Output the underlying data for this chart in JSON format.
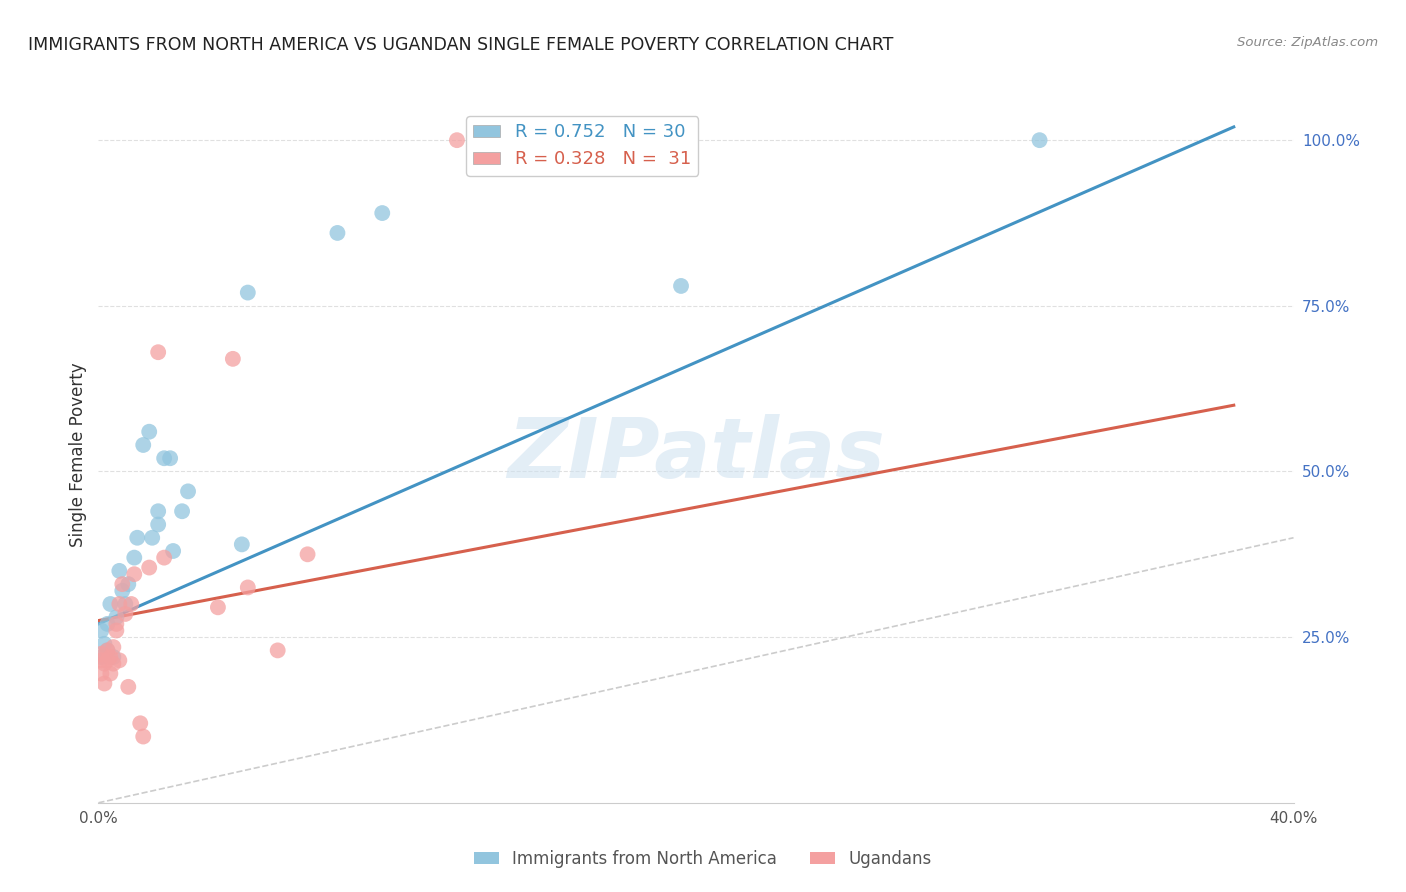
{
  "title": "IMMIGRANTS FROM NORTH AMERICA VS UGANDAN SINGLE FEMALE POVERTY CORRELATION CHART",
  "source": "Source: ZipAtlas.com",
  "ylabel": "Single Female Poverty",
  "xlim": [
    0.0,
    0.4
  ],
  "ylim": [
    0.0,
    1.05
  ],
  "x_ticks": [
    0.0,
    0.08,
    0.16,
    0.24,
    0.32,
    0.4
  ],
  "x_tick_labels": [
    "0.0%",
    "",
    "",
    "",
    "",
    "40.0%"
  ],
  "y_ticks_right": [
    0.25,
    0.5,
    0.75,
    1.0
  ],
  "y_tick_labels_right": [
    "25.0%",
    "50.0%",
    "75.0%",
    "100.0%"
  ],
  "blue_R": 0.752,
  "blue_N": 30,
  "pink_R": 0.328,
  "pink_N": 31,
  "blue_color": "#92c5de",
  "pink_color": "#f4a0a0",
  "blue_line_color": "#4393c3",
  "pink_line_color": "#d6604d",
  "diagonal_color": "#cccccc",
  "background_color": "#ffffff",
  "watermark": "ZIPatlas",
  "blue_line_x0": 0.0,
  "blue_line_y0": 0.27,
  "blue_line_x1": 0.38,
  "blue_line_y1": 1.02,
  "pink_line_x0": 0.0,
  "pink_line_y0": 0.275,
  "pink_line_x1": 0.38,
  "pink_line_y1": 0.6,
  "blue_points_x": [
    0.001,
    0.001,
    0.002,
    0.003,
    0.003,
    0.004,
    0.005,
    0.006,
    0.007,
    0.008,
    0.009,
    0.01,
    0.012,
    0.013,
    0.015,
    0.017,
    0.018,
    0.02,
    0.02,
    0.022,
    0.024,
    0.025,
    0.028,
    0.03,
    0.048,
    0.05,
    0.08,
    0.095,
    0.195,
    0.315
  ],
  "blue_points_y": [
    0.22,
    0.26,
    0.24,
    0.23,
    0.27,
    0.3,
    0.22,
    0.28,
    0.35,
    0.32,
    0.3,
    0.33,
    0.37,
    0.4,
    0.54,
    0.56,
    0.4,
    0.42,
    0.44,
    0.52,
    0.52,
    0.38,
    0.44,
    0.47,
    0.39,
    0.77,
    0.86,
    0.89,
    0.78,
    1.0
  ],
  "pink_points_x": [
    0.001,
    0.001,
    0.001,
    0.002,
    0.002,
    0.003,
    0.003,
    0.004,
    0.004,
    0.005,
    0.005,
    0.006,
    0.006,
    0.007,
    0.007,
    0.008,
    0.009,
    0.01,
    0.011,
    0.012,
    0.014,
    0.015,
    0.017,
    0.02,
    0.022,
    0.04,
    0.045,
    0.05,
    0.06,
    0.07,
    0.12
  ],
  "pink_points_y": [
    0.195,
    0.215,
    0.225,
    0.18,
    0.21,
    0.215,
    0.23,
    0.195,
    0.22,
    0.21,
    0.235,
    0.27,
    0.26,
    0.3,
    0.215,
    0.33,
    0.285,
    0.175,
    0.3,
    0.345,
    0.12,
    0.1,
    0.355,
    0.68,
    0.37,
    0.295,
    0.67,
    0.325,
    0.23,
    0.375,
    1.0
  ]
}
